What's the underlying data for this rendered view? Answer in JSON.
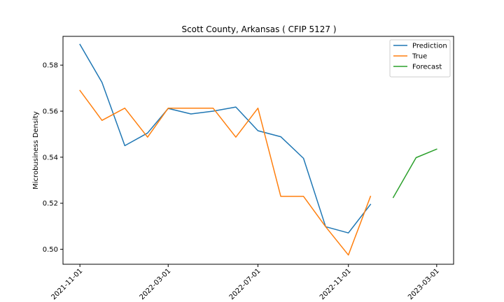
{
  "chart_data": {
    "type": "line",
    "title": "Scott County, Arkansas ( CFIP 5127 )",
    "xlabel": "",
    "ylabel": "Microbusiness Density",
    "x_ticks": [
      "2021-11-01",
      "2022-03-01",
      "2022-07-01",
      "2022-11-01",
      "2023-03-01"
    ],
    "y_ticks": [
      0.5,
      0.52,
      0.54,
      0.56,
      0.58
    ],
    "xlim": [
      "2021-10-09",
      "2023-03-24"
    ],
    "ylim": [
      0.4935,
      0.5925
    ],
    "legend_position": "top-right",
    "grid": false,
    "series": [
      {
        "name": "Prediction",
        "color": "#1f77b4",
        "x": [
          "2021-11-01",
          "2021-12-01",
          "2022-01-01",
          "2022-02-01",
          "2022-03-01",
          "2022-04-01",
          "2022-05-01",
          "2022-06-01",
          "2022-07-01",
          "2022-08-01",
          "2022-09-01",
          "2022-10-01",
          "2022-11-01",
          "2022-12-01"
        ],
        "y": [
          0.589,
          0.5725,
          0.545,
          0.5505,
          0.5612,
          0.5588,
          0.56,
          0.5618,
          0.5515,
          0.5489,
          0.5395,
          0.5098,
          0.5071,
          0.5195
        ]
      },
      {
        "name": "True",
        "color": "#ff7f0e",
        "x": [
          "2021-11-01",
          "2021-12-01",
          "2022-01-01",
          "2022-02-01",
          "2022-03-01",
          "2022-04-01",
          "2022-05-01",
          "2022-06-01",
          "2022-07-01",
          "2022-08-01",
          "2022-09-01",
          "2022-10-01",
          "2022-11-01",
          "2022-12-01"
        ],
        "y": [
          0.569,
          0.556,
          0.5613,
          0.5487,
          0.5613,
          0.5613,
          0.5613,
          0.5487,
          0.5613,
          0.523,
          0.523,
          0.5098,
          0.4975,
          0.523
        ]
      },
      {
        "name": "Forecast",
        "color": "#2ca02c",
        "x": [
          "2023-01-01",
          "2023-02-01",
          "2023-03-01"
        ],
        "y": [
          0.5225,
          0.5398,
          0.5435
        ]
      }
    ]
  }
}
